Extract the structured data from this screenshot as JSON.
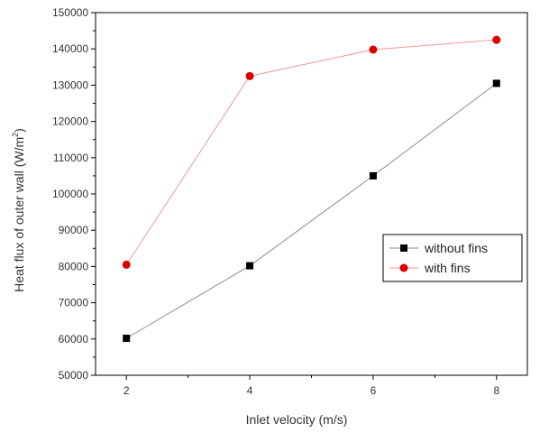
{
  "chart_data": {
    "type": "line",
    "x": [
      2,
      4,
      6,
      8
    ],
    "xlabel": "Inlet velocity (m/s)",
    "ylabel_main": "Heat flux of outer wall (W/m",
    "ylabel_sup": "2",
    "ylabel_end": ")",
    "xlim": [
      1.5,
      8.5
    ],
    "ylim": [
      50000,
      150000
    ],
    "xticks": [
      2,
      4,
      6,
      8
    ],
    "yticks": [
      50000,
      60000,
      70000,
      80000,
      90000,
      100000,
      110000,
      120000,
      130000,
      140000,
      150000
    ],
    "legend_position": "center-right",
    "series": [
      {
        "name": "without fins",
        "marker": "square",
        "line_color": "#8a8a8a",
        "marker_color": "#000000",
        "values": [
          60200,
          80200,
          105000,
          130500
        ]
      },
      {
        "name": "with fins",
        "marker": "circle",
        "line_color": "#e89a9a",
        "marker_color": "#dd0000",
        "values": [
          80500,
          132500,
          139800,
          142500
        ]
      }
    ]
  }
}
